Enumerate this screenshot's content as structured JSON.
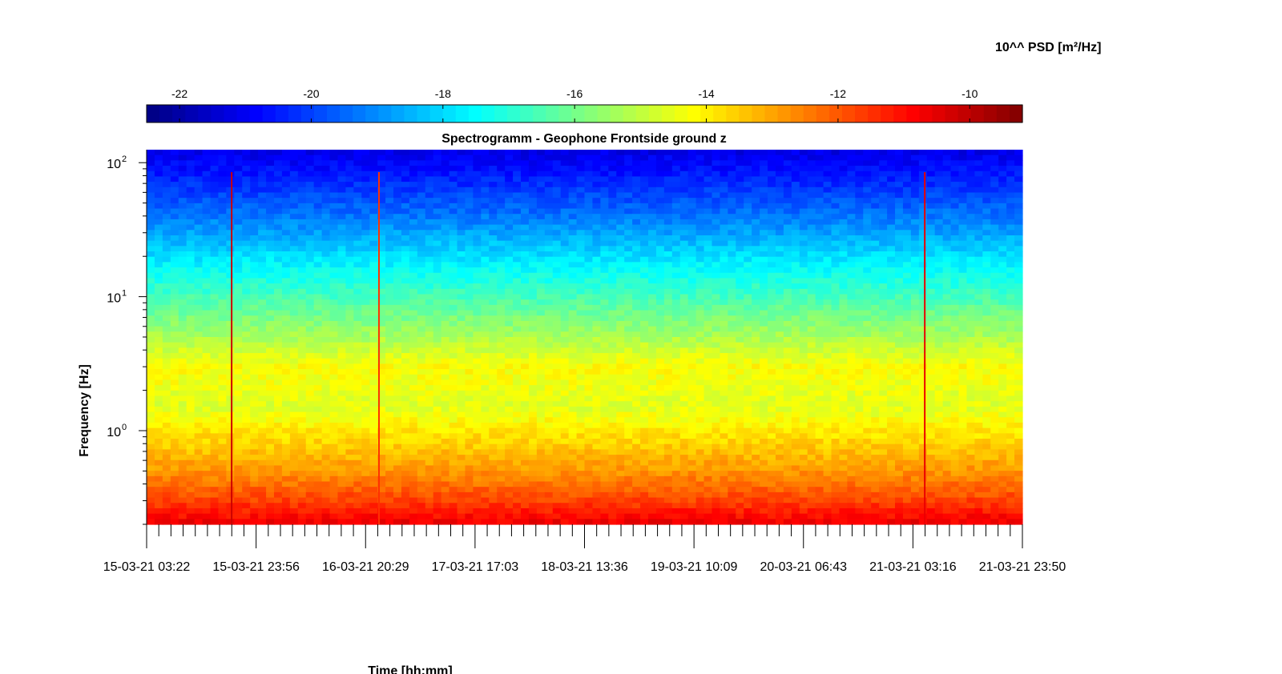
{
  "chart_data": {
    "type": "heatmap",
    "title": "Spectrogramm - Geophone Frontside ground z",
    "xlabel": "Time [hh:mm]",
    "ylabel": "Frequency [Hz]",
    "colorbar_label": "10^^ PSD [m²/Hz]",
    "colorbar": {
      "range": [
        -22.5,
        -9.2
      ],
      "ticks": [
        -22,
        -20,
        -18,
        -16,
        -14,
        -12,
        -10
      ],
      "colormap": "jet"
    },
    "x_ticks": [
      "15-03-21 03:22",
      "15-03-21 23:56",
      "16-03-21 20:29",
      "17-03-21 17:03",
      "18-03-21 13:36",
      "19-03-21 10:09",
      "20-03-21 06:43",
      "21-03-21 03:16",
      "21-03-21 23:50"
    ],
    "x_range": [
      "15-03-21 03:22",
      "21-03-21 23:50"
    ],
    "y_scale": "log",
    "y_range": [
      0.2,
      125
    ],
    "y_tick_labels": [
      {
        "value": 1,
        "base": "10",
        "exp": "0"
      },
      {
        "value": 10,
        "base": "10",
        "exp": "1"
      },
      {
        "value": 100,
        "base": "10",
        "exp": "2"
      }
    ],
    "psd_profile": [
      {
        "freq": 0.2,
        "log_psd": -10.6
      },
      {
        "freq": 0.3,
        "log_psd": -11.7
      },
      {
        "freq": 0.5,
        "log_psd": -12.8
      },
      {
        "freq": 0.8,
        "log_psd": -13.6
      },
      {
        "freq": 1.0,
        "log_psd": -13.9
      },
      {
        "freq": 1.5,
        "log_psd": -14.6
      },
      {
        "freq": 3.0,
        "log_psd": -14.2
      },
      {
        "freq": 5.0,
        "log_psd": -15.3
      },
      {
        "freq": 10.0,
        "log_psd": -16.6
      },
      {
        "freq": 20.0,
        "log_psd": -17.9
      },
      {
        "freq": 40.0,
        "log_psd": -19.3
      },
      {
        "freq": 80.0,
        "log_psd": -20.5
      },
      {
        "freq": 125.0,
        "log_psd": -21.2
      }
    ],
    "events": [
      {
        "time": "15-03-21 19:20",
        "log_psd": -10.2
      },
      {
        "time": "16-03-21 23:00",
        "log_psd": -11.5
      },
      {
        "time": "21-03-21 05:30",
        "log_psd": -10.6
      }
    ],
    "grid": false
  }
}
